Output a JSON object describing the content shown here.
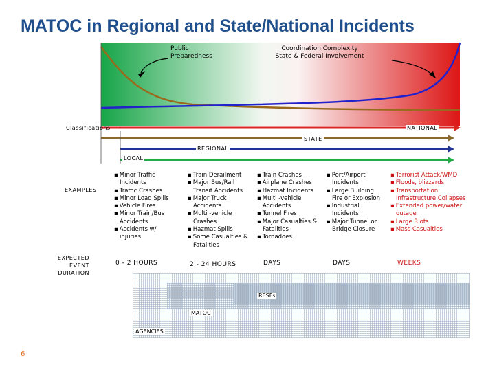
{
  "title": "MATOC in Regional and State/National Incidents",
  "chart_labels": {
    "public_preparedness": "Public Preparedness",
    "coordination": "Coordination Complexity State & Federal Involvement"
  },
  "classifications": {
    "label": "Classifications",
    "national": "NATIONAL",
    "state": "STATE",
    "regional": "REGIONAL",
    "local": "LOCAL"
  },
  "examples": {
    "label": "EXAMPLES",
    "columns": [
      [
        "Minor Traffic Incidents",
        "Traffic Crashes",
        "Minor Load Spills",
        "Vehicle Fires",
        "Minor Train/Bus Accidents",
        "Accidents w/ injuries"
      ],
      [
        "Train Derailment",
        "Major Bus/Rail Transit Accidents",
        "Major Truck Accidents",
        "Multi -vehicle Crashes",
        "Hazmat Spills",
        "Some Casualties & Fatalities"
      ],
      [
        "Train Crashes",
        "Airplane Crashes",
        "Hazmat Incidents",
        "Multi -vehicle Accidents",
        "Tunnel Fires",
        "Major Casualties & Fatalities",
        "Tornadoes"
      ],
      [
        "Port/Airport Incidents",
        "Large Building Fire or Explosion",
        "Industrial Incidents",
        "Major Tunnel or Bridge Closure"
      ],
      [
        "Terrorist Attack/WMD",
        "Floods, blizzards",
        "Transportation Infrastructure Collapses",
        "Extended power/water outage",
        "Large Riots",
        "Mass Casualties"
      ]
    ]
  },
  "duration": {
    "label": "EXPECTED EVENT DURATION",
    "values": [
      "0 - 2 HOURS",
      "2 - 24 HOURS",
      "DAYS",
      "DAYS",
      "WEEKS"
    ]
  },
  "agencies": {
    "rESFs": "RESFs",
    "matoc": "MATOC",
    "agencies": "AGENCIES"
  },
  "page_number": "6",
  "colors": {
    "title": "#1f4e8c",
    "gradient_start": "#17a548",
    "gradient_end": "#dd1515",
    "preparedness_curve": "#9a6a1c",
    "coordination_curve": "#2222cc",
    "national_arrow": "#dd2222",
    "state_arrow": "#8a6a2a",
    "regional_arrow": "#223399",
    "local_arrow": "#22aa44",
    "weeks_text": "#cc1111",
    "page_number": "#e07020"
  }
}
